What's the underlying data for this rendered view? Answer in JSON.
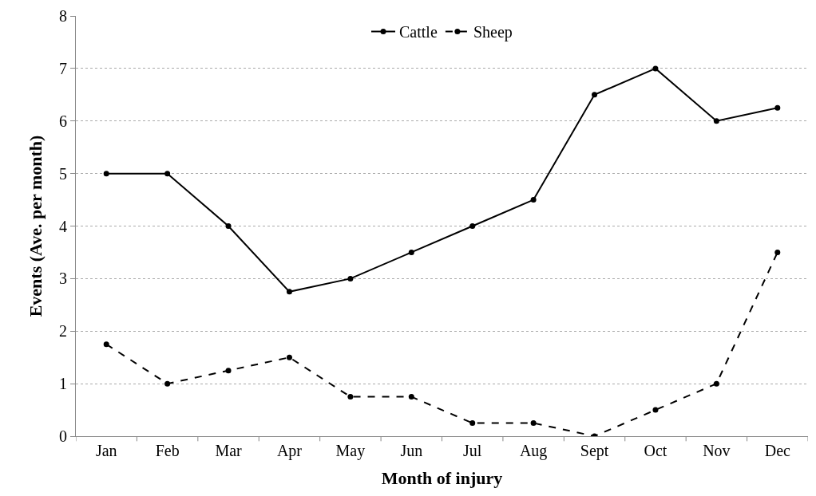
{
  "chart_data": {
    "type": "line",
    "xlabel": "Month of injury",
    "ylabel": "Events (Ave. per month)",
    "categories": [
      "Jan",
      "Feb",
      "Mar",
      "Apr",
      "May",
      "Jun",
      "Jul",
      "Aug",
      "Sept",
      "Oct",
      "Nov",
      "Dec"
    ],
    "series": [
      {
        "name": "Cattle",
        "color": "#000000",
        "line_style": "solid",
        "values": [
          5,
          5,
          4,
          2.75,
          3,
          3.5,
          4,
          4.5,
          6.5,
          7,
          6,
          6.25
        ]
      },
      {
        "name": "Sheep",
        "color": "#000000",
        "line_style": "dashed",
        "values": [
          1.75,
          1,
          1.25,
          1.5,
          0.75,
          0.75,
          0.25,
          0.25,
          0,
          0.5,
          1,
          3.5
        ]
      }
    ],
    "ylim": [
      0,
      8
    ],
    "yticks": [
      0,
      1,
      2,
      3,
      4,
      5,
      6,
      7,
      8
    ],
    "grid": "y",
    "legend": "top",
    "marker": "circle"
  }
}
